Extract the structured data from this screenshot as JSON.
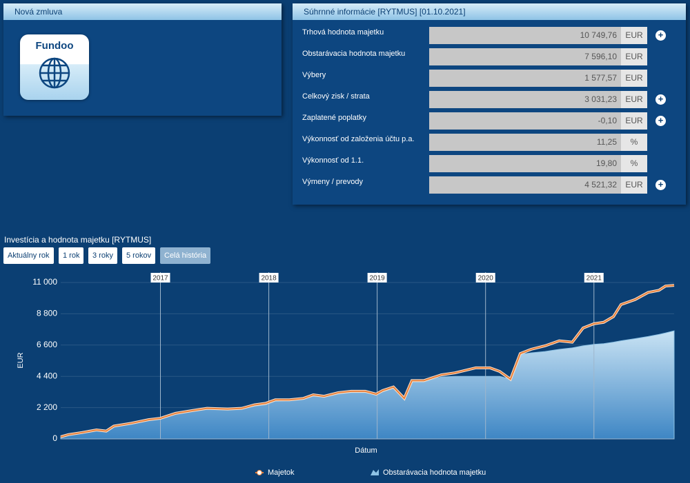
{
  "new_contract": {
    "title": "Nová zmluva",
    "product": "Fundoo"
  },
  "summary": {
    "title": "Súhrnné informácie [RYTMUS] [01.10.2021]",
    "rows": [
      {
        "label": "Trhová hodnota majetku",
        "value": "10 749,76",
        "unit": "EUR",
        "expandable": true
      },
      {
        "label": "Obstarávacia hodnota majetku",
        "value": "7 596,10",
        "unit": "EUR",
        "expandable": false
      },
      {
        "label": "Výbery",
        "value": "1 577,57",
        "unit": "EUR",
        "expandable": false
      },
      {
        "label": "Celkový zisk / strata",
        "value": "3 031,23",
        "unit": "EUR",
        "expandable": true
      },
      {
        "label": "Zaplatené poplatky",
        "value": "-0,10",
        "unit": "EUR",
        "expandable": true
      },
      {
        "label": "Výkonnosť od založenia účtu p.a.",
        "value": "11,25",
        "unit": "%",
        "expandable": false
      },
      {
        "label": "Výkonnosť od 1.1.",
        "value": "19,80",
        "unit": "%",
        "expandable": false
      },
      {
        "label": "Výmeny / prevody",
        "value": "4 521,32",
        "unit": "EUR",
        "expandable": true
      }
    ]
  },
  "chart_header": {
    "title": "Investícia a hodnota majetku [RYTMUS]",
    "ranges": [
      "Aktuálny rok",
      "1 rok",
      "3 roky",
      "5 rokov",
      "Celá história"
    ],
    "selected": 4
  },
  "chart_data": {
    "type": "line-area",
    "x_label": "Dátum",
    "y_label": "EUR",
    "x": [
      2016.08,
      2016.15,
      2016.28,
      2016.41,
      2016.5,
      2016.57,
      2016.73,
      2016.89,
      2017.0,
      2017.14,
      2017.3,
      2017.43,
      2017.62,
      2017.75,
      2017.87,
      2017.97,
      2018.06,
      2018.19,
      2018.32,
      2018.41,
      2018.51,
      2018.64,
      2018.76,
      2018.89,
      2018.99,
      2019.05,
      2019.15,
      2019.25,
      2019.32,
      2019.43,
      2019.59,
      2019.72,
      2019.91,
      2020.04,
      2020.13,
      2020.23,
      2020.32,
      2020.42,
      2020.55,
      2020.68,
      2020.8,
      2020.9,
      2021.0,
      2021.09,
      2021.18,
      2021.25,
      2021.38,
      2021.5,
      2021.6,
      2021.66,
      2021.74
    ],
    "xlim": [
      2016.08,
      2021.74
    ],
    "xticks": [
      2017,
      2018,
      2019,
      2020,
      2021
    ],
    "ylim": [
      0,
      11000
    ],
    "yticks": [
      0,
      {
        "value": 2200,
        "label": "2 200"
      },
      {
        "value": 4400,
        "label": "4 400"
      },
      {
        "value": 6600,
        "label": "6 600"
      },
      {
        "value": 8800,
        "label": "8 800"
      },
      {
        "value": 11000,
        "label": "11 000"
      }
    ],
    "grid": true,
    "legend": "bottom",
    "series": [
      {
        "name": "Majetok",
        "kind": "line",
        "color": "#e8803a",
        "values": [
          150,
          300,
          450,
          630,
          550,
          900,
          1100,
          1350,
          1450,
          1800,
          2000,
          2150,
          2100,
          2150,
          2400,
          2500,
          2750,
          2750,
          2850,
          3100,
          3000,
          3250,
          3350,
          3350,
          3150,
          3400,
          3650,
          2850,
          4100,
          4100,
          4500,
          4650,
          5000,
          5000,
          4750,
          4200,
          6000,
          6300,
          6550,
          6900,
          6800,
          7800,
          8100,
          8200,
          8600,
          9450,
          9800,
          10300,
          10450,
          10750,
          10800
        ]
      },
      {
        "name": "Obstarávacia hodnota majetku",
        "kind": "area",
        "color": "#8ec3e6",
        "values": [
          150,
          300,
          450,
          600,
          520,
          870,
          1050,
          1300,
          1400,
          1750,
          1950,
          2100,
          2050,
          2100,
          2300,
          2400,
          2650,
          2700,
          2800,
          3000,
          2950,
          3150,
          3250,
          3250,
          3100,
          3300,
          3550,
          2800,
          4000,
          4000,
          4350,
          4400,
          4400,
          4400,
          4400,
          4200,
          5950,
          6050,
          6150,
          6300,
          6400,
          6550,
          6650,
          6700,
          6800,
          6900,
          7050,
          7200,
          7350,
          7450,
          7600
        ]
      }
    ]
  }
}
